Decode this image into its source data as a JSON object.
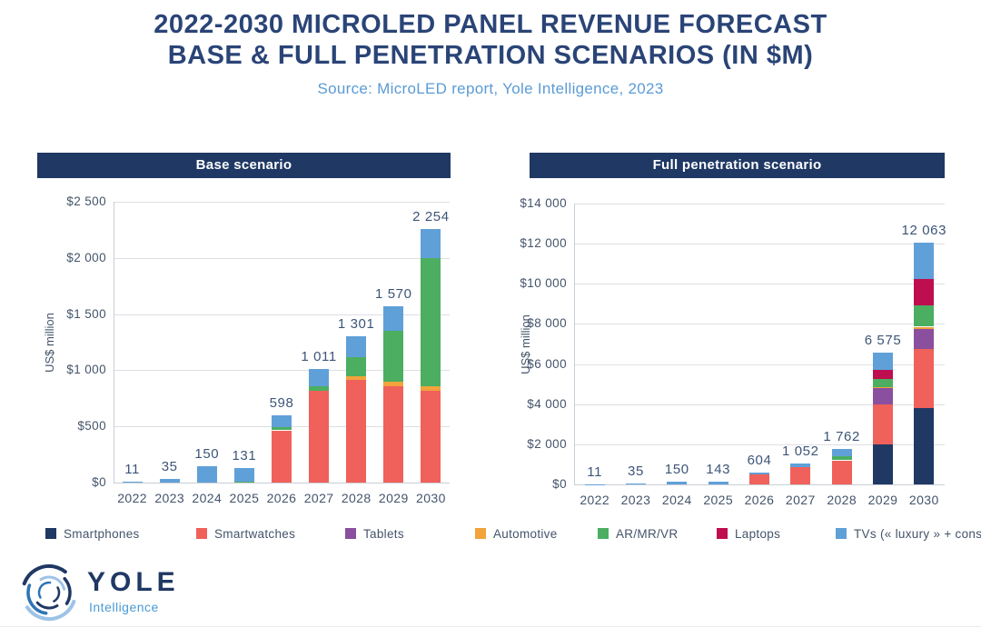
{
  "title_line1": "2022-2030 MICROLED PANEL REVENUE FORECAST",
  "title_line2": "BASE & FULL PENETRATION SCENARIOS (IN $M)",
  "source": "Source: MicroLED report, Yole Intelligence, 2023",
  "colors": {
    "title": "#2A4477",
    "subtitle": "#5B9BD5",
    "panel_header_bg": "#1F3864",
    "axis_text": "#44546A",
    "gridline": "#DDDFE3"
  },
  "legend": [
    {
      "label": "Smartphones",
      "color": "#1F3864"
    },
    {
      "label": "Smartwatches",
      "color": "#EF615A"
    },
    {
      "label": "Tablets",
      "color": "#8A4F9E"
    },
    {
      "label": "Automotive",
      "color": "#F2A33C"
    },
    {
      "label": "AR/MR/VR",
      "color": "#4BAE61"
    },
    {
      "label": "Laptops",
      "color": "#BE0E4F"
    },
    {
      "label": "TVs (« luxury » + consumer",
      "color": "#60A0D8"
    }
  ],
  "logo": {
    "brand": "YOLE",
    "sub": "Intelligence"
  },
  "chart_data": [
    {
      "type": "bar",
      "stacked": true,
      "title": "Base scenario",
      "ylabel": "US$ million",
      "grid": true,
      "categories": [
        "2022",
        "2023",
        "2024",
        "2025",
        "2026",
        "2027",
        "2028",
        "2029",
        "2030"
      ],
      "ylim": [
        0,
        2500
      ],
      "yticks": [
        {
          "value": 0,
          "label": "$0"
        },
        {
          "value": 500,
          "label": "$500"
        },
        {
          "value": 1000,
          "label": "$1 000"
        },
        {
          "value": 1500,
          "label": "$1 500"
        },
        {
          "value": 2000,
          "label": "$2 000"
        },
        {
          "value": 2500,
          "label": "$2 500"
        }
      ],
      "series": [
        {
          "name": "Smartphones",
          "color": "#1F3864",
          "values": [
            0,
            0,
            0,
            0,
            0,
            0,
            0,
            0,
            0
          ]
        },
        {
          "name": "Smartwatches",
          "color": "#EF615A",
          "values": [
            0,
            0,
            0,
            0,
            465,
            815,
            918,
            860,
            820
          ]
        },
        {
          "name": "Tablets",
          "color": "#8A4F9E",
          "values": [
            0,
            0,
            0,
            0,
            0,
            0,
            0,
            0,
            0
          ]
        },
        {
          "name": "Automotive",
          "color": "#F2A33C",
          "values": [
            0,
            0,
            0,
            0,
            0,
            0,
            32,
            40,
            40
          ]
        },
        {
          "name": "AR/MR/VR",
          "color": "#4BAE61",
          "values": [
            0,
            0,
            0,
            10,
            25,
            45,
            165,
            450,
            1140
          ]
        },
        {
          "name": "Laptops",
          "color": "#BE0E4F",
          "values": [
            0,
            0,
            0,
            0,
            0,
            0,
            0,
            0,
            0
          ]
        },
        {
          "name": "TVs (« luxury » + consumer",
          "color": "#60A0D8",
          "values": [
            11,
            35,
            150,
            121,
            108,
            151,
            186,
            220,
            254
          ]
        }
      ],
      "totals": [
        11,
        35,
        150,
        131,
        598,
        1011,
        1301,
        1570,
        2254
      ],
      "totals_label": [
        "11",
        "35",
        "150",
        "131",
        "598",
        "1 011",
        "1 301",
        "1 570",
        "2 254"
      ]
    },
    {
      "type": "bar",
      "stacked": true,
      "title": "Full penetration scenario",
      "ylabel": "US$ million",
      "grid": true,
      "categories": [
        "2022",
        "2023",
        "2024",
        "2025",
        "2026",
        "2027",
        "2028",
        "2029",
        "2030"
      ],
      "ylim": [
        0,
        14000
      ],
      "yticks": [
        {
          "value": 0,
          "label": "$0"
        },
        {
          "value": 2000,
          "label": "$2 000"
        },
        {
          "value": 4000,
          "label": "$4 000"
        },
        {
          "value": 6000,
          "label": "$6 000"
        },
        {
          "value": 8000,
          "label": "$8 000"
        },
        {
          "value": 10000,
          "label": "$10 000"
        },
        {
          "value": 12000,
          "label": "$12 000"
        },
        {
          "value": 14000,
          "label": "$14 000"
        }
      ],
      "series": [
        {
          "name": "Smartphones",
          "color": "#1F3864",
          "values": [
            0,
            0,
            0,
            0,
            0,
            0,
            0,
            2000,
            3810
          ]
        },
        {
          "name": "Smartwatches",
          "color": "#EF615A",
          "values": [
            0,
            0,
            0,
            0,
            480,
            880,
            1200,
            1990,
            2950
          ]
        },
        {
          "name": "Tablets",
          "color": "#8A4F9E",
          "values": [
            0,
            0,
            0,
            0,
            0,
            0,
            0,
            800,
            1000
          ]
        },
        {
          "name": "Automotive",
          "color": "#F2A33C",
          "values": [
            0,
            0,
            0,
            0,
            0,
            0,
            0,
            50,
            100
          ]
        },
        {
          "name": "AR/MR/VR",
          "color": "#4BAE61",
          "values": [
            0,
            0,
            0,
            0,
            0,
            0,
            190,
            420,
            1070
          ]
        },
        {
          "name": "Laptops",
          "color": "#BE0E4F",
          "values": [
            0,
            0,
            0,
            0,
            0,
            0,
            0,
            450,
            1320
          ]
        },
        {
          "name": "TVs (« luxury » + consumer",
          "color": "#60A0D8",
          "values": [
            11,
            35,
            150,
            143,
            124,
            172,
            372,
            865,
            1813
          ]
        }
      ],
      "totals": [
        11,
        35,
        150,
        143,
        604,
        1052,
        1762,
        6575,
        12063
      ],
      "totals_label": [
        "11",
        "35",
        "150",
        "143",
        "604",
        "1 052",
        "1 762",
        "6 575",
        "12 063"
      ]
    }
  ]
}
